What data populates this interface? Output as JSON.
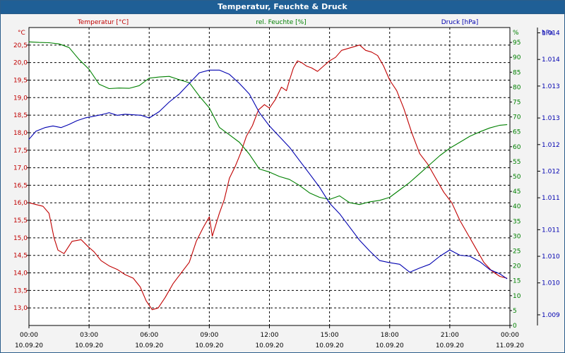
{
  "window": {
    "title": "Temperatur, Feuchte & Druck"
  },
  "colors": {
    "temperature": "#c00000",
    "humidity": "#008000",
    "pressure": "#0000b0",
    "grid": "#000000",
    "plot_background": "#ffffff",
    "titlebar": "#1f5f96"
  },
  "chart_data": {
    "type": "line",
    "title": "Temperatur, Feuchte & Druck",
    "grid": true,
    "x_ticks": [
      {
        "time": "00:00",
        "date": "10.09.20"
      },
      {
        "time": "03:00",
        "date": "10.09.20"
      },
      {
        "time": "06:00",
        "date": "10.09.20"
      },
      {
        "time": "09:00",
        "date": "10.09.20"
      },
      {
        "time": "12:00",
        "date": "10.09.20"
      },
      {
        "time": "15:00",
        "date": "10.09.20"
      },
      {
        "time": "18:00",
        "date": "10.09.20"
      },
      {
        "time": "21:00",
        "date": "10.09.20"
      },
      {
        "time": "00:00",
        "date": "11.09.20"
      }
    ],
    "x_range_hours": [
      0,
      24
    ],
    "axes": {
      "temperature": {
        "unit_label": "°C",
        "series_label": "Temperatur [°C]",
        "range": [
          12.5,
          21.0
        ],
        "ticks": [
          "13,0",
          "13,5",
          "14,0",
          "14,5",
          "15,0",
          "15,5",
          "16,0",
          "16,5",
          "17,0",
          "17,5",
          "18,0",
          "18,5",
          "19,0",
          "19,5",
          "20,0",
          "20,5"
        ]
      },
      "humidity": {
        "unit_label": "%",
        "series_label": "rel. Feuchte [%]",
        "range": [
          0,
          100
        ],
        "ticks": [
          "0",
          "5",
          "10",
          "15",
          "20",
          "25",
          "30",
          "35",
          "40",
          "45",
          "50",
          "55",
          "60",
          "65",
          "70",
          "75",
          "80",
          "85",
          "90",
          "95"
        ]
      },
      "pressure": {
        "unit_label": "hPa",
        "series_label": "Druck [hPa]",
        "range": [
          1009.0,
          1014.6
        ],
        "ticks": [
          "1.009",
          "1.010",
          "1.010",
          "1.011",
          "1.011",
          "1.012",
          "1.012",
          "1.013",
          "1.013",
          "1.014",
          "1.014"
        ]
      }
    },
    "series": [
      {
        "name": "Temperatur [°C]",
        "axis": "temperature",
        "color": "#c00000",
        "points": [
          [
            0.0,
            16.0
          ],
          [
            0.35,
            15.95
          ],
          [
            0.7,
            15.9
          ],
          [
            1.0,
            15.7
          ],
          [
            1.25,
            15.0
          ],
          [
            1.45,
            14.65
          ],
          [
            1.75,
            14.55
          ],
          [
            2.15,
            14.9
          ],
          [
            2.6,
            14.95
          ],
          [
            2.95,
            14.75
          ],
          [
            3.25,
            14.6
          ],
          [
            3.6,
            14.35
          ],
          [
            4.0,
            14.2
          ],
          [
            4.4,
            14.1
          ],
          [
            4.8,
            13.95
          ],
          [
            5.2,
            13.85
          ],
          [
            5.55,
            13.6
          ],
          [
            5.85,
            13.2
          ],
          [
            6.15,
            12.95
          ],
          [
            6.45,
            13.0
          ],
          [
            6.8,
            13.3
          ],
          [
            7.2,
            13.7
          ],
          [
            7.6,
            14.0
          ],
          [
            8.0,
            14.3
          ],
          [
            8.35,
            14.9
          ],
          [
            8.7,
            15.3
          ],
          [
            9.0,
            15.6
          ],
          [
            9.15,
            15.05
          ],
          [
            9.5,
            15.7
          ],
          [
            9.75,
            16.1
          ],
          [
            10.0,
            16.7
          ],
          [
            10.3,
            17.05
          ],
          [
            10.55,
            17.4
          ],
          [
            10.85,
            17.9
          ],
          [
            11.15,
            18.2
          ],
          [
            11.45,
            18.65
          ],
          [
            11.75,
            18.8
          ],
          [
            12.0,
            18.7
          ],
          [
            12.3,
            18.95
          ],
          [
            12.6,
            19.3
          ],
          [
            12.85,
            19.2
          ],
          [
            13.0,
            19.5
          ],
          [
            13.2,
            19.85
          ],
          [
            13.4,
            20.05
          ],
          [
            13.6,
            20.0
          ],
          [
            13.85,
            19.9
          ],
          [
            14.1,
            19.85
          ],
          [
            14.4,
            19.75
          ],
          [
            14.7,
            19.9
          ],
          [
            15.0,
            20.05
          ],
          [
            15.3,
            20.15
          ],
          [
            15.6,
            20.35
          ],
          [
            15.9,
            20.4
          ],
          [
            16.2,
            20.45
          ],
          [
            16.5,
            20.5
          ],
          [
            16.8,
            20.35
          ],
          [
            17.1,
            20.3
          ],
          [
            17.4,
            20.2
          ],
          [
            17.7,
            19.9
          ],
          [
            18.0,
            19.5
          ],
          [
            18.35,
            19.2
          ],
          [
            18.7,
            18.7
          ],
          [
            19.1,
            18.0
          ],
          [
            19.5,
            17.4
          ],
          [
            19.9,
            17.1
          ],
          [
            20.3,
            16.7
          ],
          [
            20.7,
            16.3
          ],
          [
            21.1,
            16.0
          ],
          [
            21.5,
            15.5
          ],
          [
            21.9,
            15.1
          ],
          [
            22.3,
            14.7
          ],
          [
            22.7,
            14.3
          ],
          [
            23.1,
            14.05
          ],
          [
            23.5,
            13.9
          ],
          [
            23.85,
            13.85
          ]
        ]
      },
      {
        "name": "rel. Feuchte [%]",
        "axis": "humidity",
        "color": "#008000",
        "points": [
          [
            0.0,
            95.2
          ],
          [
            0.5,
            95.0
          ],
          [
            1.0,
            94.9
          ],
          [
            1.5,
            94.5
          ],
          [
            2.0,
            93.3
          ],
          [
            2.5,
            89.3
          ],
          [
            3.0,
            86.0
          ],
          [
            3.5,
            81.0
          ],
          [
            4.0,
            79.5
          ],
          [
            4.5,
            79.7
          ],
          [
            5.0,
            79.6
          ],
          [
            5.5,
            80.5
          ],
          [
            6.0,
            83.0
          ],
          [
            6.5,
            83.4
          ],
          [
            7.0,
            83.6
          ],
          [
            7.5,
            82.5
          ],
          [
            8.0,
            81.5
          ],
          [
            8.5,
            77.0
          ],
          [
            9.0,
            73.0
          ],
          [
            9.5,
            66.5
          ],
          [
            10.0,
            64.0
          ],
          [
            10.5,
            61.5
          ],
          [
            11.0,
            57.5
          ],
          [
            11.5,
            52.5
          ],
          [
            12.0,
            51.5
          ],
          [
            12.5,
            50.0
          ],
          [
            13.0,
            49.0
          ],
          [
            13.5,
            47.0
          ],
          [
            14.0,
            44.5
          ],
          [
            14.5,
            43.0
          ],
          [
            15.0,
            42.3
          ],
          [
            15.5,
            43.5
          ],
          [
            16.0,
            41.2
          ],
          [
            16.5,
            40.6
          ],
          [
            17.0,
            41.5
          ],
          [
            17.5,
            42.0
          ],
          [
            18.0,
            43.0
          ],
          [
            18.5,
            45.5
          ],
          [
            19.0,
            48.0
          ],
          [
            19.5,
            51.0
          ],
          [
            20.0,
            54.0
          ],
          [
            20.5,
            57.0
          ],
          [
            21.0,
            59.5
          ],
          [
            21.5,
            61.5
          ],
          [
            22.0,
            63.5
          ],
          [
            22.5,
            65.0
          ],
          [
            23.0,
            66.3
          ],
          [
            23.5,
            67.2
          ],
          [
            23.85,
            67.4
          ]
        ]
      },
      {
        "name": "Druck [hPa]",
        "axis": "pressure",
        "color": "#0000b0",
        "points": [
          [
            0.0,
            1012.5
          ],
          [
            0.35,
            1012.65
          ],
          [
            0.8,
            1012.72
          ],
          [
            1.2,
            1012.75
          ],
          [
            1.6,
            1012.72
          ],
          [
            2.0,
            1012.78
          ],
          [
            2.4,
            1012.85
          ],
          [
            2.8,
            1012.9
          ],
          [
            3.2,
            1012.93
          ],
          [
            3.6,
            1012.96
          ],
          [
            4.0,
            1013.0
          ],
          [
            4.4,
            1012.95
          ],
          [
            4.8,
            1012.97
          ],
          [
            5.2,
            1012.96
          ],
          [
            5.6,
            1012.95
          ],
          [
            6.0,
            1012.9
          ],
          [
            6.5,
            1013.02
          ],
          [
            7.0,
            1013.2
          ],
          [
            7.5,
            1013.35
          ],
          [
            8.0,
            1013.55
          ],
          [
            8.5,
            1013.75
          ],
          [
            9.0,
            1013.8
          ],
          [
            9.5,
            1013.8
          ],
          [
            10.0,
            1013.72
          ],
          [
            10.5,
            1013.55
          ],
          [
            11.0,
            1013.35
          ],
          [
            11.5,
            1013.0
          ],
          [
            12.0,
            1012.75
          ],
          [
            12.5,
            1012.55
          ],
          [
            13.0,
            1012.35
          ],
          [
            13.5,
            1012.1
          ],
          [
            14.0,
            1011.85
          ],
          [
            14.5,
            1011.6
          ],
          [
            15.0,
            1011.3
          ],
          [
            15.5,
            1011.1
          ],
          [
            16.0,
            1010.85
          ],
          [
            16.5,
            1010.6
          ],
          [
            17.0,
            1010.4
          ],
          [
            17.5,
            1010.22
          ],
          [
            18.0,
            1010.18
          ],
          [
            18.5,
            1010.15
          ],
          [
            19.0,
            1010.0
          ],
          [
            19.5,
            1010.08
          ],
          [
            20.0,
            1010.15
          ],
          [
            20.5,
            1010.3
          ],
          [
            21.0,
            1010.42
          ],
          [
            21.5,
            1010.32
          ],
          [
            22.0,
            1010.3
          ],
          [
            22.5,
            1010.2
          ],
          [
            23.0,
            1010.05
          ],
          [
            23.5,
            1009.97
          ],
          [
            23.85,
            1009.88
          ]
        ]
      }
    ]
  }
}
